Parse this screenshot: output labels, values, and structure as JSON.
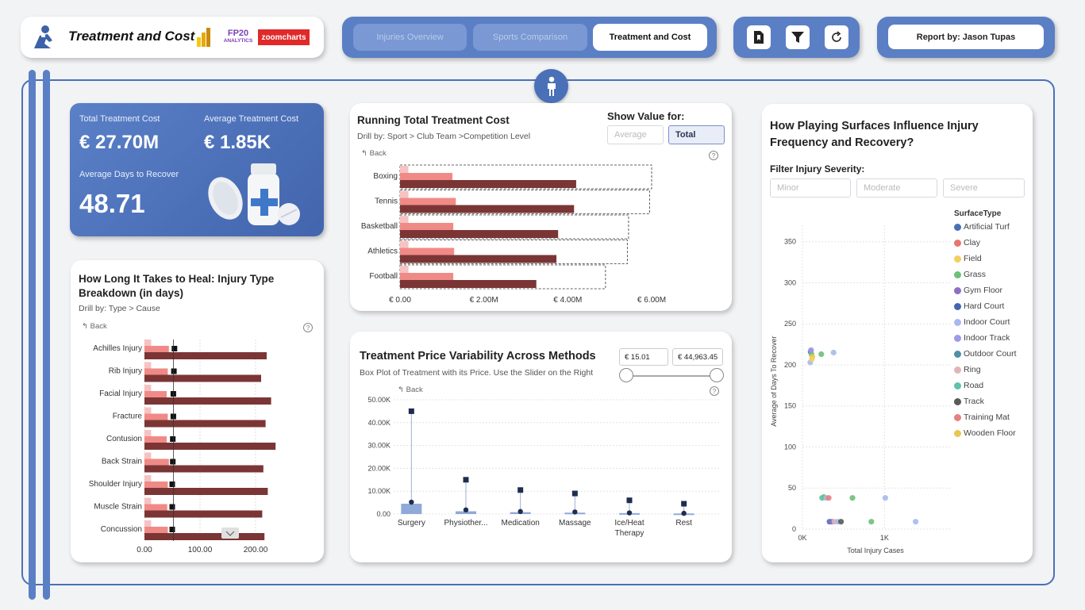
{
  "header": {
    "title": "Treatment and Cost",
    "logos": {
      "fp20": "FP20",
      "fp20_sub": "ANALYTICS",
      "zoom": "zoomcharts"
    },
    "tabs": [
      {
        "label": "Injuries Overview",
        "active": false
      },
      {
        "label": "Sports Comparison",
        "active": false
      },
      {
        "label": "Treatment and Cost",
        "active": true
      }
    ],
    "tools": [
      "bookmark-icon",
      "filter-icon",
      "refresh-icon"
    ],
    "report_by": "Report by: Jason Tupas"
  },
  "colors": {
    "accent": "#5b7fc4",
    "dark_bar": "#7b3535",
    "light_bar": "#f08a87",
    "pale_bar": "#f6c3c2",
    "box": "#8fa9d8",
    "marker": "#1e2d4f"
  },
  "kpi": {
    "total_label": "Total Treatment Cost",
    "total_value": "€ 27.70M",
    "avg_label": "Average Treatment Cost",
    "avg_value": "€ 1.85K",
    "days_label": "Average Days to Recover",
    "days_value": "48.71"
  },
  "running": {
    "title": "Running Total Treatment Cost",
    "subtitle": "Drill by: Sport > Club Team >Competition Level",
    "back": "Back",
    "show_value_label": "Show Value for:",
    "toggle": [
      "Average",
      "Total"
    ],
    "toggle_selected": "Total",
    "chart_data": {
      "type": "bar",
      "orientation": "horizontal",
      "categories": [
        "Boxing",
        "Tennis",
        "Basketball",
        "Athletics",
        "Football"
      ],
      "series": [
        {
          "values": [
            0.2,
            0.2,
            0.2,
            0.2,
            0.2
          ]
        },
        {
          "values": [
            1.25,
            1.33,
            1.27,
            1.29,
            1.27
          ]
        },
        {
          "values": [
            4.2,
            4.15,
            3.77,
            3.73,
            3.25
          ]
        },
        {
          "values": [
            6.0,
            5.95,
            5.45,
            5.42,
            4.9
          ]
        }
      ],
      "xticks": [
        "€ 0.00",
        "€ 2.00M",
        "€ 4.00M",
        "€ 6.00M"
      ],
      "xlim": [
        0,
        6.0
      ]
    }
  },
  "heal": {
    "title_line1": "How Long It Takes to Heal: Injury Type",
    "title_line2": "Breakdown (in days)",
    "subtitle": "Drill by: Type > Cause",
    "back": "Back",
    "chart_data": {
      "type": "bar",
      "orientation": "horizontal",
      "categories": [
        "Achilles Injury",
        "Rib Injury",
        "Facial Injury",
        "Fracture",
        "Contusion",
        "Back Strain",
        "Shoulder Injury",
        "Muscle Strain",
        "Concussion"
      ],
      "series": [
        {
          "values": [
            12,
            12,
            12,
            12,
            12,
            12,
            12,
            12,
            12
          ]
        },
        {
          "values": [
            44,
            42,
            40,
            42,
            40,
            44,
            42,
            41,
            42
          ]
        },
        {
          "values": [
            220,
            210,
            228,
            218,
            236,
            214,
            222,
            212,
            216
          ]
        }
      ],
      "markers": [
        54,
        53,
        52,
        52,
        51,
        51,
        50,
        50,
        50
      ],
      "xticks": [
        "0.00",
        "100.00",
        "200.00"
      ],
      "xlim": [
        0,
        240
      ]
    }
  },
  "price": {
    "title": "Treatment Price Variability Across Methods",
    "subtitle": "Box Plot of Treatment with its Price. Use the Slider on the Right",
    "back": "Back",
    "slider_min": "€ 15.01",
    "slider_max": "€ 44,963.45",
    "chart_data": {
      "type": "box",
      "categories": [
        "Surgery",
        "Physiother...",
        "Medication",
        "Massage",
        "Ice/Heat|Therapy",
        "Rest"
      ],
      "max": [
        45000,
        15000,
        10500,
        9000,
        6000,
        4500
      ],
      "median": [
        5200,
        1800,
        1100,
        900,
        500,
        300
      ],
      "q1": [
        0,
        0,
        0,
        0,
        0,
        0
      ],
      "q3": [
        4500,
        1200,
        800,
        600,
        400,
        250
      ],
      "yticks": [
        "0.00",
        "10.00K",
        "20.00K",
        "30.00K",
        "40.00K",
        "50.00K"
      ],
      "ylim": [
        0,
        50000
      ]
    }
  },
  "surface": {
    "title_line1": "How Playing Surfaces Influence Injury",
    "title_line2": "Frequency and Recovery?",
    "filter_label": "Filter Injury Severity:",
    "filters": [
      "Minor",
      "Moderate",
      "Severe"
    ],
    "legend_title": "SurfaceType",
    "legend": [
      {
        "name": "Artificial Turf",
        "color": "#4a6fb3"
      },
      {
        "name": "Clay",
        "color": "#e8756f"
      },
      {
        "name": "Field",
        "color": "#f0d060"
      },
      {
        "name": "Grass",
        "color": "#6cc07a"
      },
      {
        "name": "Gym Floor",
        "color": "#8c6fc2"
      },
      {
        "name": "Hard Court",
        "color": "#4466b0"
      },
      {
        "name": "Indoor Court",
        "color": "#a9b9ee"
      },
      {
        "name": "Indoor Track",
        "color": "#9e9ae8"
      },
      {
        "name": "Outdoor Court",
        "color": "#4f8fa8"
      },
      {
        "name": "Ring",
        "color": "#e0b4b6"
      },
      {
        "name": "Road",
        "color": "#5ec2ae"
      },
      {
        "name": "Track",
        "color": "#5a5a5a"
      },
      {
        "name": "Training Mat",
        "color": "#e88080"
      },
      {
        "name": "Wooden Floor",
        "color": "#e8c850"
      }
    ],
    "chart_data": {
      "type": "scatter",
      "xlabel": "Total Injury Cases",
      "ylabel": "Average of Days To Recover",
      "xticks": [
        "0K",
        "1K"
      ],
      "yticks": [
        "0",
        "50",
        "100",
        "150",
        "200",
        "250",
        "300",
        "350"
      ],
      "xlim": [
        0,
        1800
      ],
      "ylim": [
        0,
        370
      ],
      "points": [
        {
          "x": 100,
          "y": 216,
          "c": "#4a6fb3"
        },
        {
          "x": 110,
          "y": 213,
          "c": "#6cc07a"
        },
        {
          "x": 120,
          "y": 210,
          "c": "#e8c850"
        },
        {
          "x": 95,
          "y": 203,
          "c": "#a9b9ee"
        },
        {
          "x": 230,
          "y": 213,
          "c": "#6cc07a"
        },
        {
          "x": 380,
          "y": 215,
          "c": "#a9b9ee"
        },
        {
          "x": 105,
          "y": 218,
          "c": "#9e9ae8"
        },
        {
          "x": 115,
          "y": 207,
          "c": "#f0d060"
        },
        {
          "x": 240,
          "y": 38,
          "c": "#5ec2ae"
        },
        {
          "x": 260,
          "y": 39,
          "c": "#6cc07a"
        },
        {
          "x": 290,
          "y": 38,
          "c": "#a9b9ee"
        },
        {
          "x": 320,
          "y": 38,
          "c": "#e88080"
        },
        {
          "x": 610,
          "y": 38,
          "c": "#6cc07a"
        },
        {
          "x": 1010,
          "y": 38,
          "c": "#a9b9ee"
        },
        {
          "x": 330,
          "y": 9,
          "c": "#4a6fb3"
        },
        {
          "x": 360,
          "y": 9,
          "c": "#8c6fc2"
        },
        {
          "x": 390,
          "y": 9,
          "c": "#e0b4b6"
        },
        {
          "x": 430,
          "y": 9,
          "c": "#a9b9ee"
        },
        {
          "x": 470,
          "y": 9,
          "c": "#5a5a5a"
        },
        {
          "x": 840,
          "y": 9,
          "c": "#6cc07a"
        },
        {
          "x": 1380,
          "y": 9,
          "c": "#a9b9ee"
        }
      ]
    }
  }
}
